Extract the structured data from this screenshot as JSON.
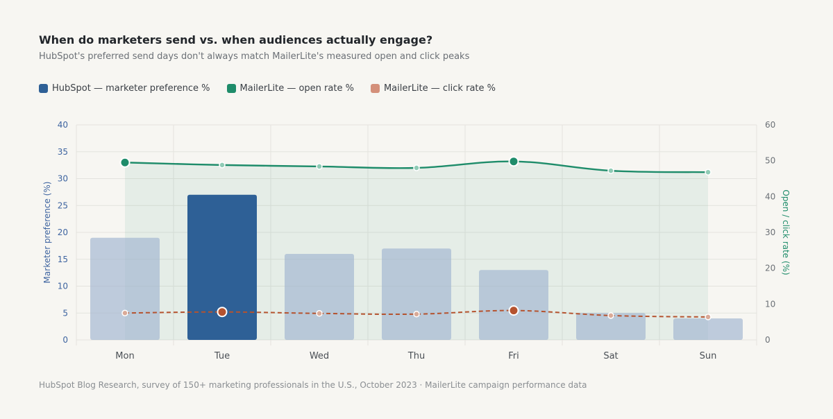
{
  "title": "When do marketers send vs. when audiences actually engage?",
  "subtitle": "HubSpot's preferred send days don't always match MailerLite's measured open and click peaks",
  "legend": [
    {
      "label": "HubSpot — marketer preference %",
      "color": "#2e6096"
    },
    {
      "label": "MailerLite — open rate %",
      "color": "#1e8c6a"
    },
    {
      "label": "MailerLite — click rate %",
      "color": "#d4907a"
    }
  ],
  "footer": "HubSpot Blog Research, survey of 150+ marketing professionals in the U.S., October 2023 · MailerLite campaign performance data",
  "chart_data": {
    "type": "bar",
    "categories": [
      "Mon",
      "Tue",
      "Wed",
      "Thu",
      "Fri",
      "Sat",
      "Sun"
    ],
    "series": [
      {
        "name": "HubSpot — marketer preference %",
        "type": "bar",
        "axis": "left",
        "values": [
          19,
          27,
          16,
          17,
          13,
          5,
          4
        ],
        "color": "#2e6096"
      },
      {
        "name": "MailerLite — open rate %",
        "type": "line",
        "axis": "right",
        "values": [
          49.5,
          48.8,
          48.4,
          48.0,
          49.8,
          47.2,
          46.8
        ],
        "color": "#1e8c6a"
      },
      {
        "name": "MailerLite — click rate %",
        "type": "line",
        "axis": "right",
        "values": [
          7.5,
          7.8,
          7.4,
          7.2,
          8.2,
          6.8,
          6.4
        ],
        "color": "#b5532f"
      }
    ],
    "highlight_categories": [
      "Tue"
    ],
    "peak_markers": {
      "open": [
        "Mon",
        "Fri"
      ],
      "click": [
        "Tue",
        "Fri"
      ]
    },
    "ylabel": "Marketer preference (%)",
    "y2label": "Open / click rate (%)",
    "ylim": [
      0,
      40
    ],
    "y2lim": [
      0,
      60
    ],
    "yticks": [
      0,
      5,
      10,
      15,
      20,
      25,
      30,
      35,
      40
    ],
    "y2ticks": [
      0,
      10,
      20,
      30,
      40,
      50,
      60
    ],
    "grid": true,
    "legend_position": "top-left"
  }
}
